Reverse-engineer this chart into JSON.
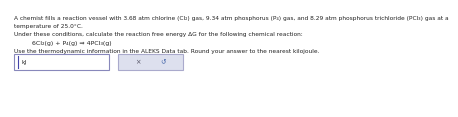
{
  "bg_color": "#ffffff",
  "text_color": "#222222",
  "line1": "A chemist fills a reaction vessel with 3.68 atm chlorine (Cl₂) gas, 9.34 atm phosphorus (P₄) gas, and 8.29 atm phosphorus trichloride (PCl₃) gas at a",
  "line2": "temperature of 25.0°C.",
  "line3": "Under these conditions, calculate the reaction free energy ΔG for the following chemical reaction:",
  "line4": "6Cl₂(g) + P₄(g) ⇒ 4PCl₃(g)",
  "line5": "Use the thermodynamic information in the ALEKS Data tab. Round your answer to the nearest kilojoule.",
  "input_label": "kJ",
  "button1_label": "×",
  "button2_label": "↺",
  "font_size_main": 4.2,
  "font_size_eq": 4.5,
  "input_box_color": "#ffffff",
  "input_border_color": "#8888bb",
  "button_bg_color": "#dde0ee",
  "button_border_color": "#aaaacc",
  "cursor_color": "#4444aa"
}
